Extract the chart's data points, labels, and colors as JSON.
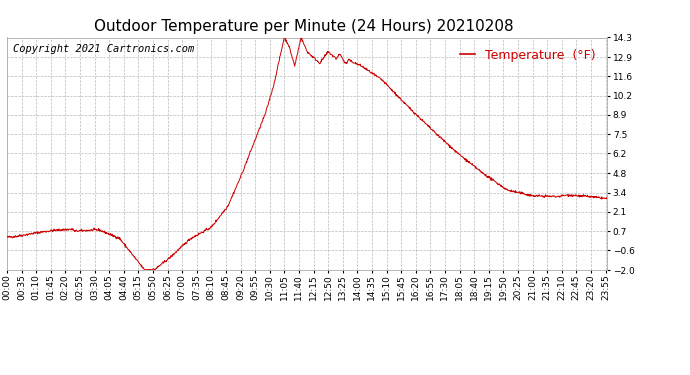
{
  "title": "Outdoor Temperature per Minute (24 Hours) 20210208",
  "copyright_text": "Copyright 2021 Cartronics.com",
  "legend_label": "Temperature  (°F)",
  "line_color": "#cc0000",
  "background_color": "#ffffff",
  "plot_bg_color": "#ffffff",
  "grid_color": "#bbbbbb",
  "yticks": [
    -2.0,
    -0.6,
    0.7,
    2.1,
    3.4,
    4.8,
    6.2,
    7.5,
    8.9,
    10.2,
    11.6,
    12.9,
    14.3
  ],
  "ylim": [
    -2.0,
    14.3
  ],
  "title_fontsize": 11,
  "axis_fontsize": 6.5,
  "legend_fontsize": 9,
  "copyright_fontsize": 7.5
}
